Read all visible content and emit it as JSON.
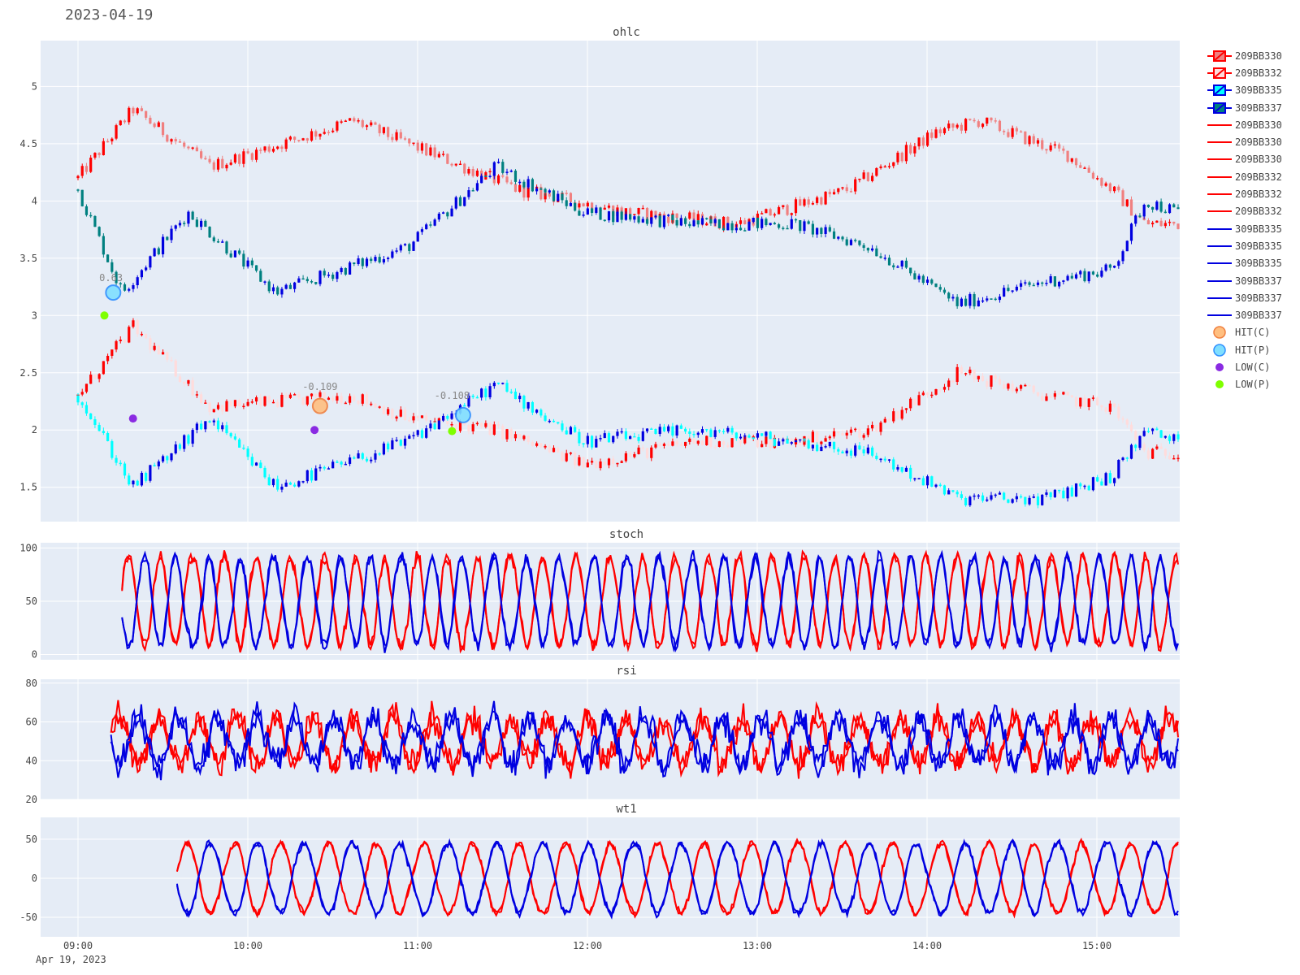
{
  "header": {
    "date": "2023-04-19"
  },
  "colors": {
    "plot_bg": "#e5ecf6",
    "grid": "#ffffff",
    "call_up": "#ff0000",
    "call_down": "#f08080",
    "call_down_light": "#ffdcdc",
    "put_up": "#0000e0",
    "put_down": "#008080",
    "put_down_cyan": "#00ffff",
    "hit_call": "#ffbf80",
    "hit_put": "#80dfff",
    "low_call": "#8a2be2",
    "low_put": "#7fff00"
  },
  "chart_data": [
    {
      "type": "line",
      "title": "ohlc",
      "subtype": "candlestick",
      "ylim": [
        1.2,
        5.4
      ],
      "yticks": [
        "1.5",
        "2",
        "2.5",
        "3",
        "3.5",
        "4",
        "4.5",
        "5"
      ],
      "ytick_values": [
        1.5,
        2,
        2.5,
        3,
        3.5,
        4,
        4.5,
        5
      ],
      "series": [
        {
          "name": "209BB330",
          "color": "#ff0000",
          "anchors": [
            [
              0,
              4.2
            ],
            [
              0.05,
              4.8
            ],
            [
              0.12,
              4.3
            ],
            [
              0.25,
              4.7
            ],
            [
              0.4,
              4.1
            ],
            [
              0.5,
              3.9
            ],
            [
              0.6,
              3.8
            ],
            [
              0.7,
              4.1
            ],
            [
              0.78,
              4.6
            ],
            [
              0.82,
              4.7
            ],
            [
              0.9,
              4.4
            ],
            [
              0.94,
              4.1
            ],
            [
              0.97,
              3.8
            ],
            [
              1,
              3.8
            ]
          ]
        },
        {
          "name": "309BB335",
          "color": "#0000e0",
          "anchors": [
            [
              0,
              4.1
            ],
            [
              0.04,
              3.2
            ],
            [
              0.1,
              3.9
            ],
            [
              0.18,
              3.2
            ],
            [
              0.3,
              3.6
            ],
            [
              0.38,
              4.3
            ],
            [
              0.46,
              3.9
            ],
            [
              0.56,
              3.8
            ],
            [
              0.65,
              3.8
            ],
            [
              0.72,
              3.6
            ],
            [
              0.8,
              3.1
            ],
            [
              0.88,
              3.3
            ],
            [
              0.94,
              3.4
            ],
            [
              0.97,
              4
            ],
            [
              1,
              3.9
            ]
          ]
        },
        {
          "name": "209BB332",
          "color": "#ff0000",
          "anchors": [
            [
              0,
              2.3
            ],
            [
              0.05,
              2.9
            ],
            [
              0.12,
              2.2
            ],
            [
              0.25,
              2.3
            ],
            [
              0.3,
              2.1
            ],
            [
              0.38,
              2
            ],
            [
              0.46,
              1.7
            ],
            [
              0.56,
              1.9
            ],
            [
              0.65,
              1.9
            ],
            [
              0.72,
              2
            ],
            [
              0.8,
              2.5
            ],
            [
              0.88,
              2.3
            ],
            [
              0.94,
              2.2
            ],
            [
              0.97,
              1.8
            ],
            [
              1,
              1.8
            ]
          ]
        },
        {
          "name": "309BB337",
          "color": "#0000e0",
          "anchors": [
            [
              0,
              2.3
            ],
            [
              0.05,
              1.5
            ],
            [
              0.12,
              2.1
            ],
            [
              0.18,
              1.5
            ],
            [
              0.3,
              1.9
            ],
            [
              0.38,
              2.4
            ],
            [
              0.46,
              1.9
            ],
            [
              0.56,
              2
            ],
            [
              0.65,
              1.9
            ],
            [
              0.72,
              1.8
            ],
            [
              0.8,
              1.4
            ],
            [
              0.88,
              1.4
            ],
            [
              0.94,
              1.6
            ],
            [
              0.97,
              2
            ],
            [
              1,
              1.9
            ]
          ]
        }
      ],
      "annotations": [
        {
          "text": "0.63",
          "x": 0.03,
          "y": 3.3
        },
        {
          "text": "-0.109",
          "x": 0.22,
          "y": 2.35
        },
        {
          "text": "-0.108",
          "x": 0.34,
          "y": 2.27
        }
      ],
      "markers": [
        {
          "kind": "HIT(C)",
          "x": 0.22,
          "y": 2.21
        },
        {
          "kind": "HIT(P)",
          "x": 0.032,
          "y": 3.2
        },
        {
          "kind": "HIT(P)",
          "x": 0.35,
          "y": 2.13
        },
        {
          "kind": "LOW(C)",
          "x": 0.05,
          "y": 2.1
        },
        {
          "kind": "LOW(C)",
          "x": 0.215,
          "y": 2.0
        },
        {
          "kind": "LOW(P)",
          "x": 0.024,
          "y": 3.0
        },
        {
          "kind": "LOW(P)",
          "x": 0.34,
          "y": 1.99
        }
      ]
    },
    {
      "type": "line",
      "title": "stoch",
      "ylim": [
        -5,
        105
      ],
      "yticks": [
        "0",
        "50",
        "100"
      ],
      "ytick_values": [
        0,
        50,
        100
      ]
    },
    {
      "type": "line",
      "title": "rsi",
      "ylim": [
        20,
        82
      ],
      "yticks": [
        "20",
        "40",
        "60",
        "80"
      ],
      "ytick_values": [
        20,
        40,
        60,
        80
      ]
    },
    {
      "type": "line",
      "title": "wt1",
      "ylim": [
        -75,
        78
      ],
      "yticks": [
        "-50",
        "0",
        "50"
      ],
      "ytick_values": [
        -50,
        0,
        50
      ]
    }
  ],
  "xaxis": {
    "ticks": [
      "09:00",
      "10:00",
      "11:00",
      "12:00",
      "13:00",
      "14:00",
      "15:00"
    ],
    "start_label": "Apr 19, 2023"
  },
  "legend": [
    {
      "label": "209BB330",
      "symbol": "candle",
      "color": "#ff0000",
      "fill": "#f08080"
    },
    {
      "label": "209BB332",
      "symbol": "candle-open",
      "color": "#ff0000",
      "fill": "#ffdcdc"
    },
    {
      "label": "309BB335",
      "symbol": "candle",
      "color": "#0000e0",
      "fill": "#00ffff"
    },
    {
      "label": "309BB337",
      "symbol": "candle",
      "color": "#0000e0",
      "fill": "#008080"
    },
    {
      "label": "209BB330",
      "symbol": "line",
      "color": "#ff0000"
    },
    {
      "label": "209BB330",
      "symbol": "line",
      "color": "#ff0000"
    },
    {
      "label": "209BB330",
      "symbol": "line",
      "color": "#ff0000"
    },
    {
      "label": "209BB332",
      "symbol": "line",
      "color": "#ff0000"
    },
    {
      "label": "209BB332",
      "symbol": "line",
      "color": "#ff0000"
    },
    {
      "label": "209BB332",
      "symbol": "line",
      "color": "#ff0000"
    },
    {
      "label": "309BB335",
      "symbol": "line",
      "color": "#0000e0"
    },
    {
      "label": "309BB335",
      "symbol": "line",
      "color": "#0000e0"
    },
    {
      "label": "309BB335",
      "symbol": "line",
      "color": "#0000e0"
    },
    {
      "label": "309BB337",
      "symbol": "line",
      "color": "#0000e0"
    },
    {
      "label": "309BB337",
      "symbol": "line",
      "color": "#0000e0"
    },
    {
      "label": "309BB337",
      "symbol": "line",
      "color": "#0000e0"
    },
    {
      "label": "HIT(C)",
      "symbol": "circle-big",
      "color": "#ffbf80"
    },
    {
      "label": "HIT(P)",
      "symbol": "circle-big",
      "color": "#80dfff"
    },
    {
      "label": "LOW(C)",
      "symbol": "circle",
      "color": "#8a2be2"
    },
    {
      "label": "LOW(P)",
      "symbol": "circle",
      "color": "#7fff00"
    }
  ]
}
